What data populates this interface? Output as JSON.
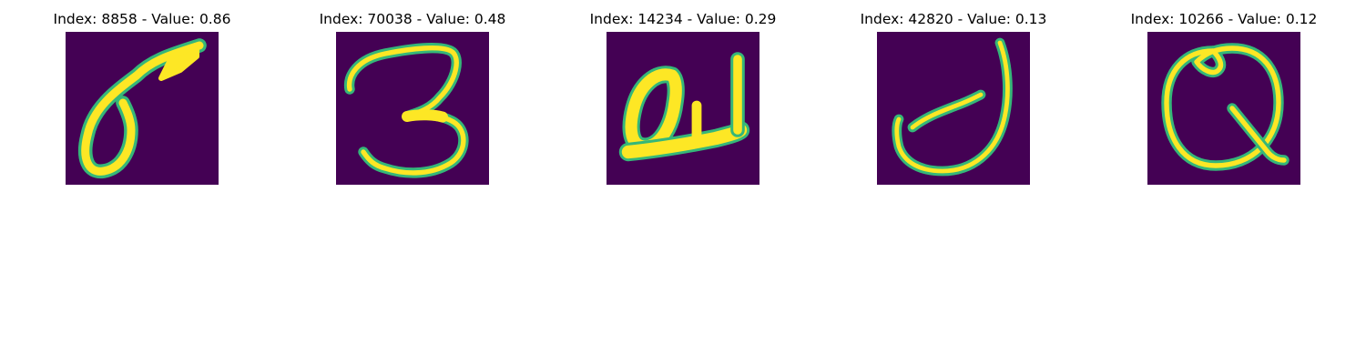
{
  "panels": [
    {
      "title": "Index: 8858 - Value: 0.86",
      "image": "digit-6-image"
    },
    {
      "title": "Index: 70038 - Value: 0.48",
      "image": "digit-3-image"
    },
    {
      "title": "Index: 14234 - Value: 0.29",
      "image": "letter-a-image"
    },
    {
      "title": "Index: 42820 - Value: 0.13",
      "image": "letter-j-image"
    },
    {
      "title": "Index: 10266 - Value: 0.12",
      "image": "letter-q-image"
    }
  ],
  "colors": {
    "background": "#440154",
    "stroke_core": "#fde725",
    "stroke_mid": "#35b779",
    "stroke_edge": "#31688e"
  }
}
